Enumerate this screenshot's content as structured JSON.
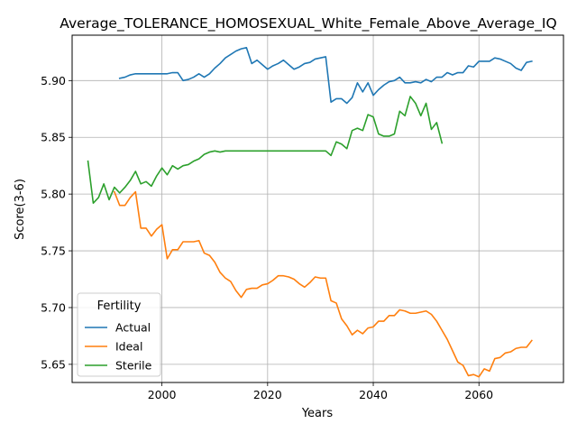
{
  "chart_data": {
    "type": "line",
    "title": "Average_TOLERANCE_HOMOSEXUAL_White_Female_Above_Average_IQ",
    "xlabel": "Years",
    "ylabel": "Score(3-6)",
    "xlim": [
      1983,
      2076
    ],
    "ylim": [
      5.634,
      5.94
    ],
    "xticks": [
      2000,
      2020,
      2040,
      2060
    ],
    "yticks": [
      5.65,
      5.7,
      5.75,
      5.8,
      5.85,
      5.9
    ],
    "ytick_labels": [
      "5.65",
      "5.70",
      "5.75",
      "5.80",
      "5.85",
      "5.90"
    ],
    "grid": true,
    "legend": {
      "title": "Fertility",
      "placement": "lower-left",
      "entries": [
        "Actual",
        "Ideal",
        "Sterile"
      ]
    },
    "series": [
      {
        "name": "Actual",
        "color": "#1f77b4",
        "x": [
          1992,
          1993,
          1994,
          1995,
          1996,
          1997,
          1998,
          1999,
          2000,
          2001,
          2002,
          2003,
          2004,
          2005,
          2006,
          2007,
          2008,
          2009,
          2010,
          2011,
          2012,
          2013,
          2014,
          2015,
          2016,
          2017,
          2018,
          2019,
          2020,
          2021,
          2022,
          2023,
          2024,
          2025,
          2026,
          2027,
          2028,
          2029,
          2030,
          2031,
          2032,
          2033,
          2034,
          2035,
          2036,
          2037,
          2038,
          2039,
          2040,
          2041,
          2042,
          2043,
          2044,
          2045,
          2046,
          2047,
          2048,
          2049,
          2050,
          2051,
          2052,
          2053,
          2054,
          2055,
          2056,
          2057,
          2058,
          2059,
          2060,
          2061,
          2062,
          2063,
          2064,
          2065,
          2066,
          2067,
          2068,
          2069,
          2070
        ],
        "y": [
          5.902,
          5.903,
          5.905,
          5.906,
          5.906,
          5.906,
          5.906,
          5.906,
          5.906,
          5.906,
          5.907,
          5.907,
          5.9,
          5.901,
          5.903,
          5.906,
          5.903,
          5.906,
          5.911,
          5.915,
          5.92,
          5.923,
          5.926,
          5.928,
          5.929,
          5.915,
          5.918,
          5.914,
          5.91,
          5.913,
          5.915,
          5.918,
          5.914,
          5.91,
          5.912,
          5.915,
          5.916,
          5.919,
          5.92,
          5.921,
          5.881,
          5.884,
          5.884,
          5.88,
          5.885,
          5.898,
          5.89,
          5.898,
          5.887,
          5.892,
          5.896,
          5.899,
          5.9,
          5.903,
          5.898,
          5.898,
          5.899,
          5.898,
          5.901,
          5.899,
          5.903,
          5.903,
          5.907,
          5.905,
          5.907,
          5.907,
          5.913,
          5.912,
          5.917,
          5.917,
          5.917,
          5.92,
          5.919,
          5.917,
          5.915,
          5.911,
          5.909,
          5.916,
          5.917
        ]
      },
      {
        "name": "Ideal",
        "color": "#ff7f0e",
        "x": [
          1991,
          1992,
          1993,
          1994,
          1995,
          1996,
          1997,
          1998,
          1999,
          2000,
          2001,
          2002,
          2003,
          2004,
          2005,
          2006,
          2007,
          2008,
          2009,
          2010,
          2011,
          2012,
          2013,
          2014,
          2015,
          2016,
          2017,
          2018,
          2019,
          2020,
          2021,
          2022,
          2023,
          2024,
          2025,
          2026,
          2027,
          2028,
          2029,
          2030,
          2031,
          2032,
          2033,
          2034,
          2035,
          2036,
          2037,
          2038,
          2039,
          2040,
          2041,
          2042,
          2043,
          2044,
          2045,
          2046,
          2047,
          2048,
          2049,
          2050,
          2051,
          2052,
          2053,
          2054,
          2055,
          2056,
          2057,
          2058,
          2059,
          2060,
          2061,
          2062,
          2063,
          2064,
          2065,
          2066,
          2067,
          2068,
          2069,
          2070
        ],
        "y": [
          5.802,
          5.79,
          5.79,
          5.797,
          5.802,
          5.77,
          5.77,
          5.763,
          5.769,
          5.773,
          5.743,
          5.751,
          5.751,
          5.758,
          5.758,
          5.758,
          5.759,
          5.748,
          5.746,
          5.74,
          5.731,
          5.726,
          5.723,
          5.715,
          5.709,
          5.716,
          5.717,
          5.717,
          5.72,
          5.721,
          5.724,
          5.728,
          5.728,
          5.727,
          5.725,
          5.721,
          5.718,
          5.722,
          5.727,
          5.726,
          5.726,
          5.706,
          5.704,
          5.69,
          5.684,
          5.676,
          5.68,
          5.677,
          5.682,
          5.683,
          5.688,
          5.688,
          5.693,
          5.693,
          5.698,
          5.697,
          5.695,
          5.695,
          5.696,
          5.697,
          5.694,
          5.688,
          5.68,
          5.672,
          5.662,
          5.652,
          5.649,
          5.64,
          5.641,
          5.639,
          5.646,
          5.644,
          5.655,
          5.656,
          5.66,
          5.661,
          5.664,
          5.665,
          5.665,
          5.671
        ]
      },
      {
        "name": "Sterile",
        "color": "#2ca02c",
        "x": [
          1986,
          1987,
          1988,
          1989,
          1990,
          1991,
          1992,
          1993,
          1994,
          1995,
          1996,
          1997,
          1998,
          1999,
          2000,
          2001,
          2002,
          2003,
          2004,
          2005,
          2006,
          2007,
          2008,
          2009,
          2010,
          2011,
          2012,
          2013,
          2014,
          2015,
          2016,
          2017,
          2018,
          2019,
          2020,
          2021,
          2022,
          2023,
          2024,
          2025,
          2026,
          2027,
          2028,
          2029,
          2030,
          2031,
          2032,
          2033,
          2034,
          2035,
          2036,
          2037,
          2038,
          2039,
          2040,
          2041,
          2042,
          2043,
          2044,
          2045,
          2046,
          2047,
          2048,
          2049,
          2050,
          2051,
          2052,
          2053
        ],
        "y": [
          5.829,
          5.792,
          5.797,
          5.809,
          5.795,
          5.806,
          5.801,
          5.806,
          5.812,
          5.82,
          5.809,
          5.811,
          5.807,
          5.816,
          5.823,
          5.817,
          5.825,
          5.822,
          5.825,
          5.826,
          5.829,
          5.831,
          5.835,
          5.837,
          5.838,
          5.837,
          5.838,
          5.838,
          5.838,
          5.838,
          5.838,
          5.838,
          5.838,
          5.838,
          5.838,
          5.838,
          5.838,
          5.838,
          5.838,
          5.838,
          5.838,
          5.838,
          5.838,
          5.838,
          5.838,
          5.838,
          5.834,
          5.846,
          5.844,
          5.84,
          5.856,
          5.858,
          5.856,
          5.87,
          5.868,
          5.853,
          5.851,
          5.851,
          5.853,
          5.873,
          5.869,
          5.886,
          5.88,
          5.869,
          5.88,
          5.857,
          5.863,
          5.845
        ]
      }
    ]
  }
}
